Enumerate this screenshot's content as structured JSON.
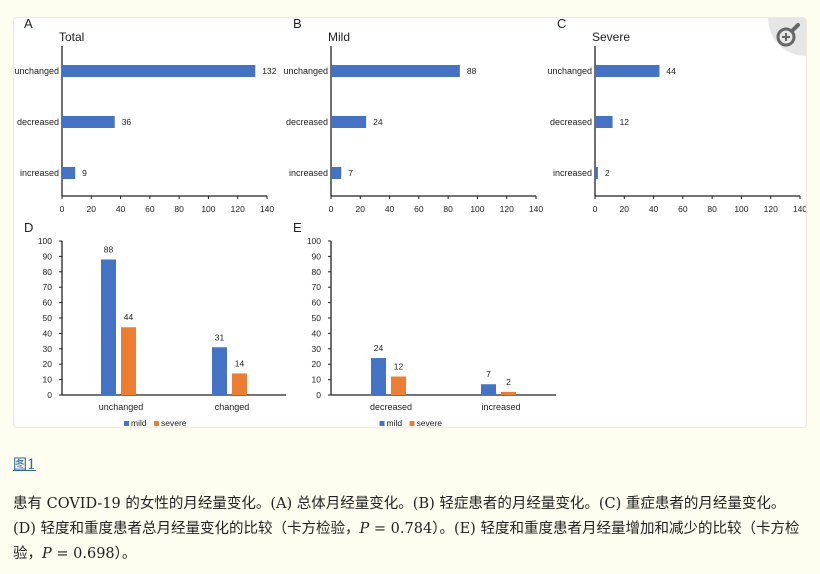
{
  "figure": {
    "zoom_icon": "zoom-in-magnifier-icon",
    "link_label": "图1",
    "caption_parts": [
      "患有 COVID-19 的女性的月经量变化。(A) 总体月经量变化。(B) 轻症患者的月经量变化。(C) 重症患者的月经量变化。(D) 轻度和重度患者总月经量变化的比较（卡方检验，",
      "P",
      " = 0.784）。(E) 轻度和重度患者月经量增加和减少的比较（卡方检验，",
      "P",
      " = 0.698）。"
    ]
  },
  "colors": {
    "mild": "#4472c4",
    "severe": "#ed7d31",
    "bars": "#4472c4"
  },
  "chart_data": [
    {
      "panel": "A",
      "type": "bar",
      "orientation": "horizontal",
      "title": "Total",
      "categories": [
        "unchanged",
        "decreased",
        "increased"
      ],
      "values": [
        132,
        36,
        9
      ],
      "xlim": [
        0,
        140
      ],
      "xticks": [
        0,
        20,
        40,
        60,
        80,
        100,
        120,
        140
      ]
    },
    {
      "panel": "B",
      "type": "bar",
      "orientation": "horizontal",
      "title": "Mild",
      "categories": [
        "unchanged",
        "decreased",
        "increased"
      ],
      "values": [
        88,
        24,
        7
      ],
      "xlim": [
        0,
        140
      ],
      "xticks": [
        0,
        20,
        40,
        60,
        80,
        100,
        120,
        140
      ]
    },
    {
      "panel": "C",
      "type": "bar",
      "orientation": "horizontal",
      "title": "Severe",
      "categories": [
        "unchanged",
        "decreased",
        "increased"
      ],
      "values": [
        44,
        12,
        2
      ],
      "xlim": [
        0,
        140
      ],
      "xticks": [
        0,
        20,
        40,
        60,
        80,
        100,
        120,
        140
      ]
    },
    {
      "panel": "D",
      "type": "bar",
      "orientation": "vertical",
      "title": "",
      "categories": [
        "unchanged",
        "changed"
      ],
      "series": [
        {
          "name": "mild",
          "values": [
            88,
            31
          ]
        },
        {
          "name": "severe",
          "values": [
            44,
            14
          ]
        }
      ],
      "ylim": [
        0,
        100
      ],
      "yticks": [
        0,
        10,
        20,
        30,
        40,
        50,
        60,
        70,
        80,
        90,
        100
      ],
      "legend": "bottom"
    },
    {
      "panel": "E",
      "type": "bar",
      "orientation": "vertical",
      "title": "",
      "categories": [
        "decreased",
        "increased"
      ],
      "series": [
        {
          "name": "mild",
          "values": [
            24,
            7
          ]
        },
        {
          "name": "severe",
          "values": [
            12,
            2
          ]
        }
      ],
      "ylim": [
        0,
        100
      ],
      "yticks": [
        0,
        10,
        20,
        30,
        40,
        50,
        60,
        70,
        80,
        90,
        100
      ],
      "legend": "bottom"
    }
  ]
}
